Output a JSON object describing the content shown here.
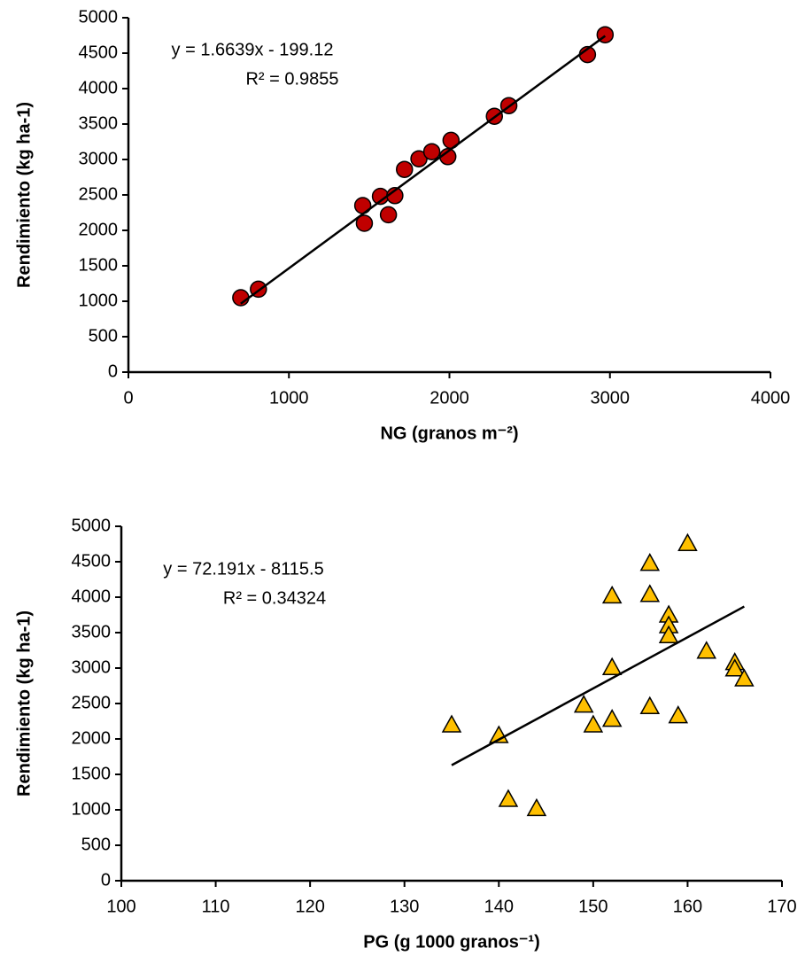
{
  "chart_data": [
    {
      "type": "scatter",
      "x_label": "NG (granos m⁻²)",
      "y_label": "Rendimiento (kg ha-1)",
      "annotations": [
        "y = 1.6639x - 199.12",
        "R² = 0.9855"
      ],
      "xlim": [
        0,
        4000
      ],
      "xticks": [
        0,
        1000,
        2000,
        3000,
        4000
      ],
      "ylim": [
        0,
        5000
      ],
      "yticks": [
        0,
        500,
        1000,
        1500,
        2000,
        2500,
        3000,
        3500,
        4000,
        4500,
        5000
      ],
      "marker": "circle",
      "color": "#c00000",
      "x": [
        700,
        810,
        1460,
        1470,
        1570,
        1660,
        1620,
        1720,
        1810,
        1890,
        1990,
        2010,
        2280,
        2370,
        2860,
        2970
      ],
      "values": [
        1050,
        1170,
        2350,
        2100,
        2480,
        2490,
        2220,
        2860,
        3010,
        3110,
        3040,
        3270,
        3610,
        3760,
        4480,
        4760
      ],
      "trendline": {
        "x": [
          700,
          2970
        ],
        "values": [
          966,
          4743
        ]
      }
    },
    {
      "type": "scatter",
      "x_label": "PG (g 1000 granos⁻¹)",
      "y_label": "Rendimiento (kg ha-1)",
      "annotations": [
        "y = 72.191x - 8115.5",
        "R² = 0.34324"
      ],
      "xlim": [
        100,
        170
      ],
      "xticks": [
        100,
        110,
        120,
        130,
        140,
        150,
        160,
        170
      ],
      "ylim": [
        0,
        5000
      ],
      "yticks": [
        0,
        500,
        1000,
        1500,
        2000,
        2500,
        3000,
        3500,
        4000,
        4500,
        5000
      ],
      "marker": "triangle",
      "color": "#ffc000",
      "x": [
        135,
        140,
        141,
        144,
        149,
        150,
        152,
        152,
        152,
        156,
        156,
        156,
        158,
        158,
        158,
        159,
        160,
        162,
        165,
        165,
        166
      ],
      "values": [
        2200,
        2050,
        1150,
        1020,
        2480,
        2200,
        2280,
        3010,
        4020,
        4480,
        4040,
        2460,
        3750,
        3600,
        3460,
        2330,
        4760,
        3240,
        3080,
        2990,
        2850
      ],
      "trendline": {
        "x": [
          135,
          166
        ],
        "values": [
          1630,
          3868
        ]
      }
    }
  ]
}
